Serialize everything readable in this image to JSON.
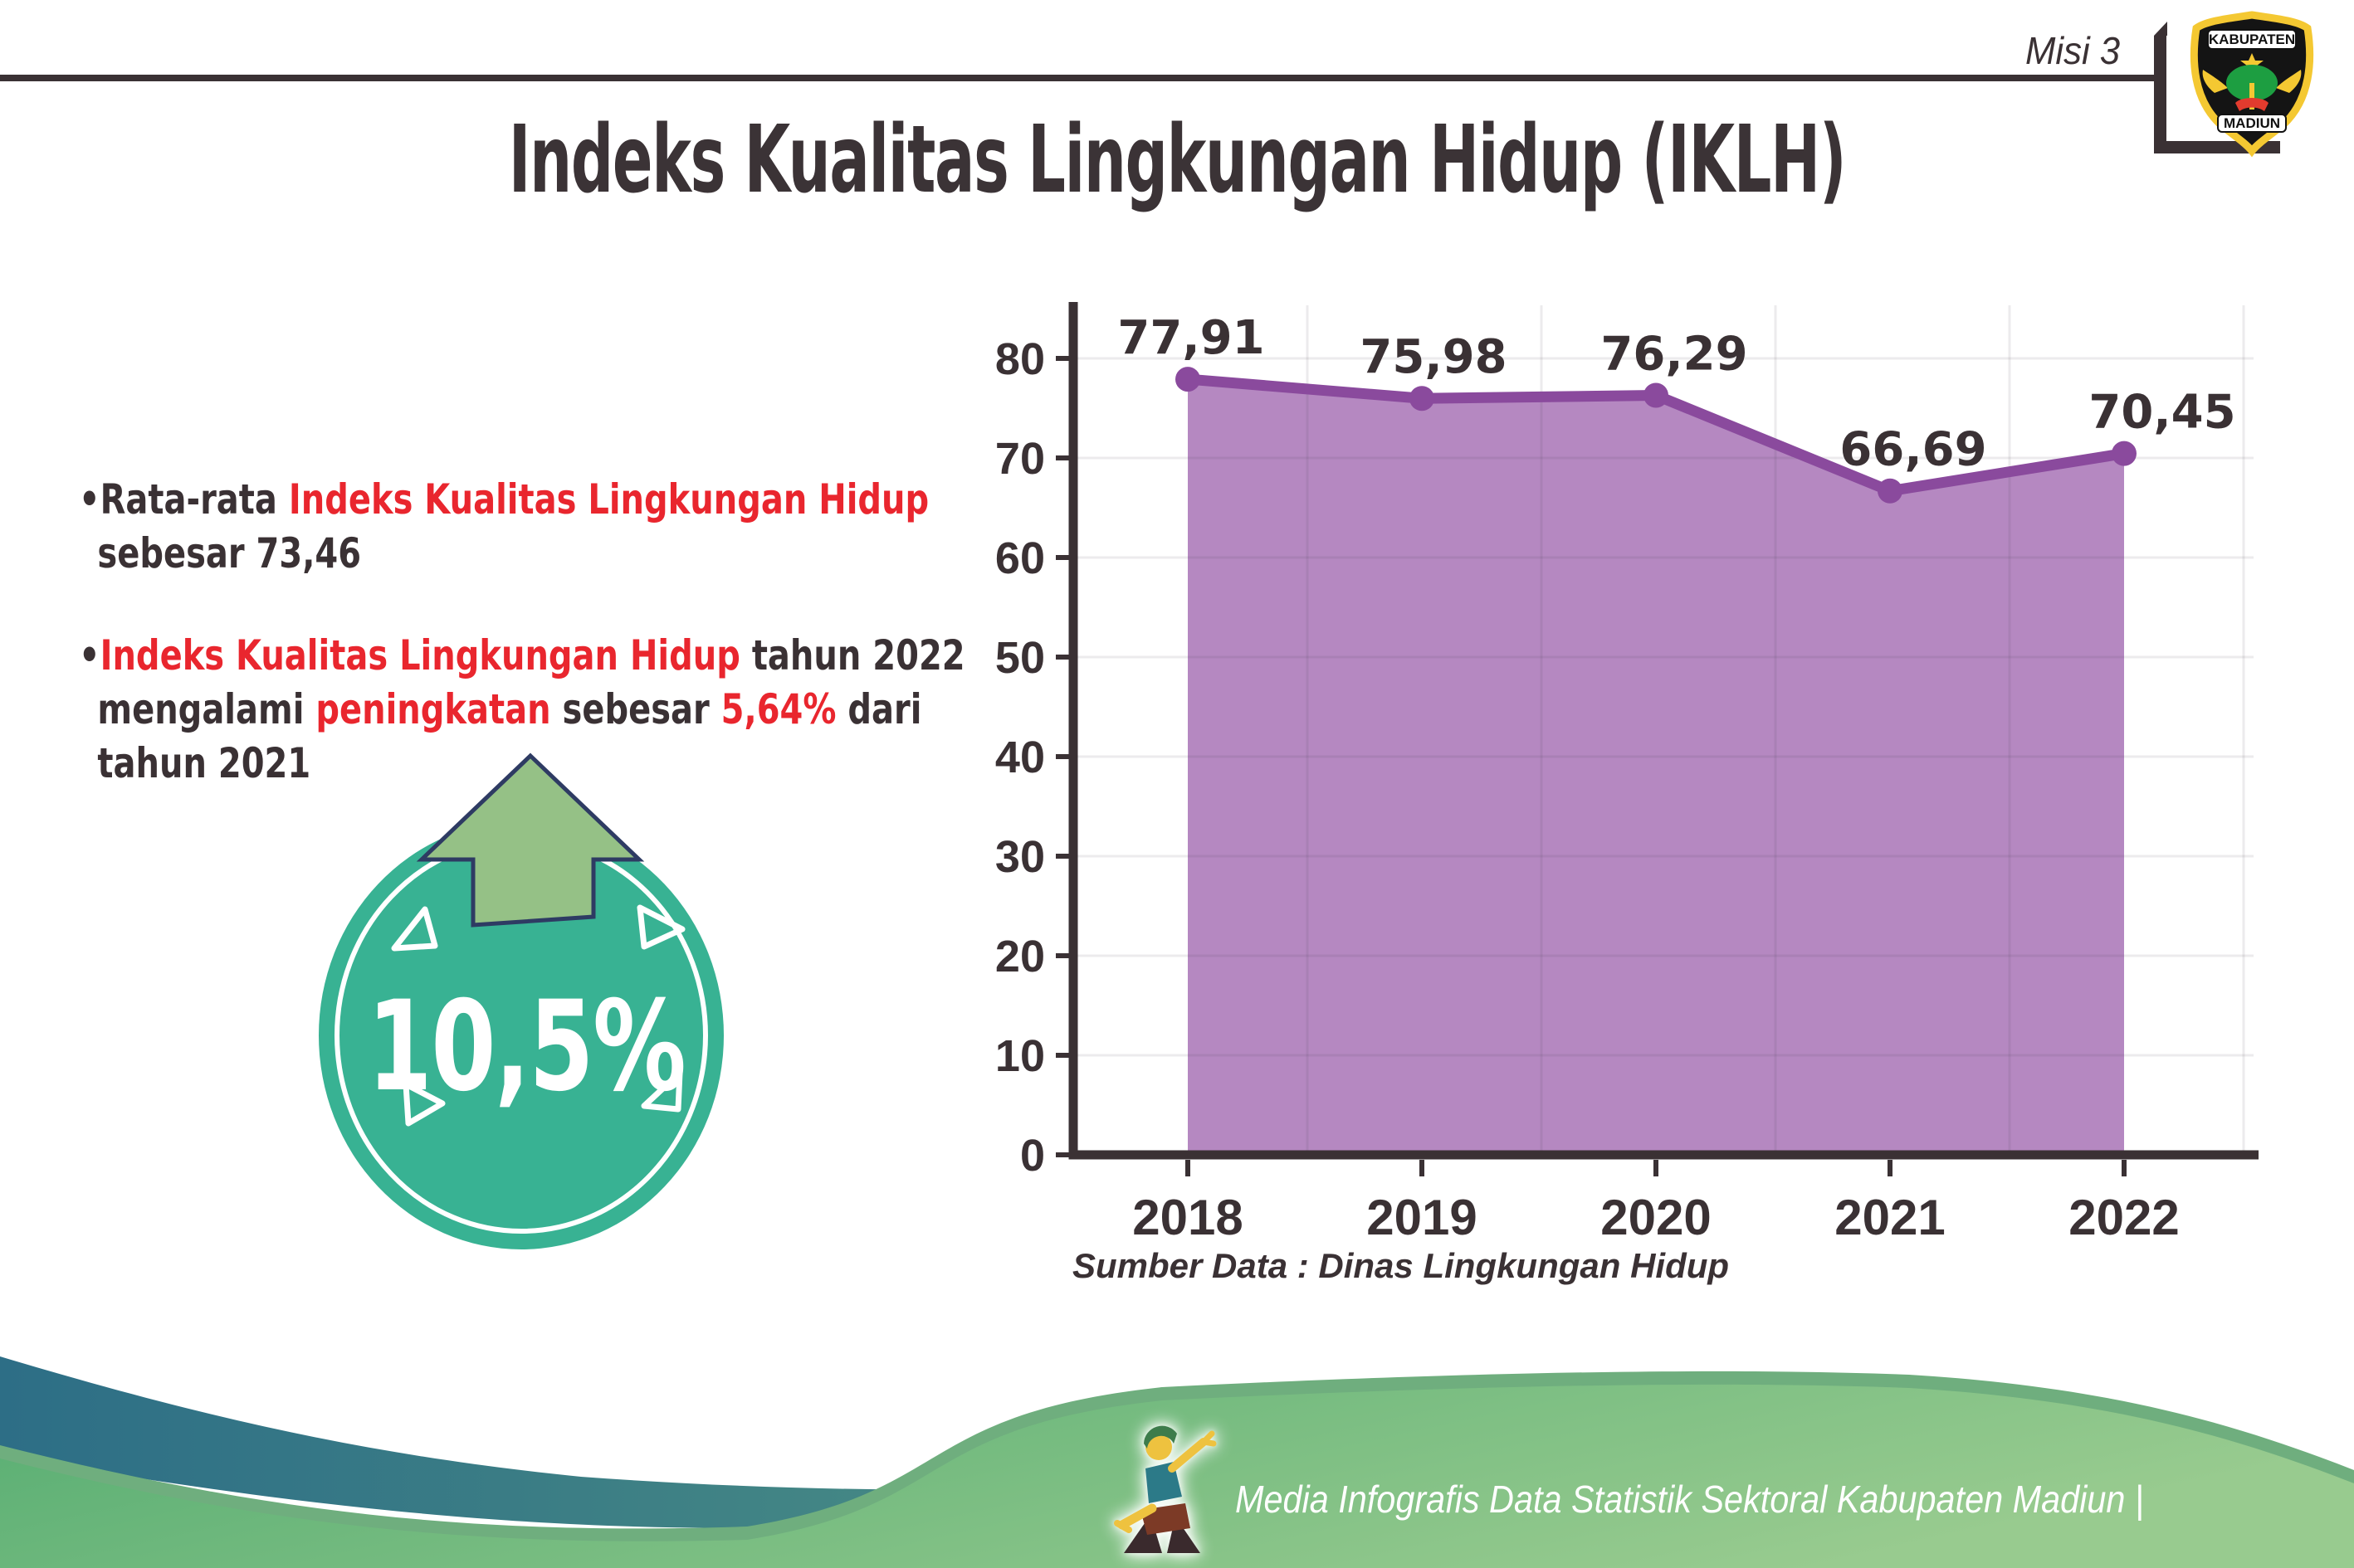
{
  "page": {
    "misi": "Misi 3",
    "title": "Indeks Kualitas Lingkungan Hidup (IKLH)"
  },
  "logo": {
    "top_banner": "KABUPATEN",
    "bottom_banner": "MADIUN"
  },
  "bullets": [
    {
      "lines": [
        [
          {
            "text": "Rata-rata ",
            "color": "dark"
          },
          {
            "text": "Indeks Kualitas Lingkungan Hidup",
            "color": "red"
          }
        ],
        [
          {
            "text": "sebesar 73,46",
            "color": "dark"
          }
        ]
      ]
    },
    {
      "lines": [
        [
          {
            "text": "Indeks Kualitas Lingkungan Hidup",
            "color": "red"
          },
          {
            "text": " tahun 2022",
            "color": "dark"
          }
        ],
        [
          {
            "text": "mengalami ",
            "color": "dark"
          },
          {
            "text": "peningkatan",
            "color": "red"
          },
          {
            "text": " sebesar ",
            "color": "dark"
          },
          {
            "text": "5,64%",
            "color": "red"
          },
          {
            "text": " dari",
            "color": "dark"
          }
        ],
        [
          {
            "text": "tahun 2021",
            "color": "dark"
          }
        ]
      ]
    }
  ],
  "badge": {
    "value": "10,5%",
    "icon": "up-arrow-icon"
  },
  "chart_data": {
    "type": "area",
    "categories": [
      "2018",
      "2019",
      "2020",
      "2021",
      "2022"
    ],
    "values": [
      77.91,
      75.98,
      76.29,
      66.69,
      70.45
    ],
    "value_labels": [
      "77,91",
      "75,98",
      "76,29",
      "66,69",
      "70,45"
    ],
    "title": "",
    "xlabel": "",
    "ylabel": "",
    "ylim": [
      0,
      85
    ],
    "yticks": [
      0,
      10,
      20,
      30,
      40,
      50,
      60,
      70,
      80
    ],
    "grid": true,
    "legend": false,
    "source": "Sumber Data : Dinas Lingkungan Hidup",
    "line_color": "#8a4a9d",
    "fill_color": "#b588c1",
    "axis_color": "#3a3134"
  },
  "footer": {
    "text": "Media Infografis Data Statistik Sektoral Kabupaten Madiun |"
  },
  "colors": {
    "dark": "#3a3134",
    "red": "#e9262e",
    "badge_teal": "#38b293",
    "arrow_green": "#95c186",
    "arrow_outline": "#2e3b63",
    "teal_wave_start": "#2d6e86",
    "teal_wave_end": "#7cb28d",
    "green_wave_start": "#56ad72",
    "green_wave_end": "#98cb8f",
    "green_edge": "#6fae7e"
  }
}
